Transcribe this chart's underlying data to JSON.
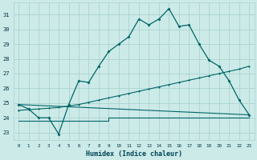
{
  "xlabel": "Humidex (Indice chaleur)",
  "background_color": "#cceae8",
  "grid_color": "#aad4d0",
  "line_color": "#006666",
  "xlim": [
    -0.5,
    23.5
  ],
  "ylim": [
    22.5,
    31.8
  ],
  "yticks": [
    23,
    24,
    25,
    26,
    27,
    28,
    29,
    30,
    31
  ],
  "xticks": [
    0,
    1,
    2,
    3,
    4,
    5,
    6,
    7,
    8,
    9,
    10,
    11,
    12,
    13,
    14,
    15,
    16,
    17,
    18,
    19,
    20,
    21,
    22,
    23
  ],
  "series1_x": [
    0,
    1,
    2,
    3,
    4,
    5,
    6,
    7,
    8,
    9,
    10,
    11,
    12,
    13,
    14,
    15,
    16,
    17,
    18,
    19,
    20,
    21,
    22,
    23
  ],
  "series1_y": [
    24.9,
    24.6,
    24.0,
    24.0,
    22.9,
    24.9,
    26.5,
    26.4,
    27.5,
    28.5,
    29.0,
    29.5,
    30.7,
    30.3,
    30.7,
    31.4,
    30.2,
    30.3,
    29.0,
    27.9,
    27.5,
    26.5,
    25.2,
    24.2
  ],
  "series2_x": [
    0,
    23
  ],
  "series2_y": [
    24.9,
    24.2
  ],
  "series3_x": [
    0,
    1,
    2,
    3,
    4,
    5,
    6,
    7,
    8,
    9,
    10,
    11,
    12,
    13,
    14,
    15,
    16,
    17,
    18,
    19,
    20,
    21,
    22,
    23
  ],
  "series3_y": [
    24.5,
    24.55,
    24.6,
    24.65,
    24.7,
    24.8,
    24.9,
    25.05,
    25.2,
    25.35,
    25.5,
    25.65,
    25.8,
    25.95,
    26.1,
    26.25,
    26.4,
    26.55,
    26.7,
    26.85,
    27.0,
    27.15,
    27.3,
    27.5
  ],
  "series4_x": [
    0,
    9,
    9,
    23
  ],
  "series4_y": [
    23.8,
    23.8,
    24.0,
    24.0
  ]
}
